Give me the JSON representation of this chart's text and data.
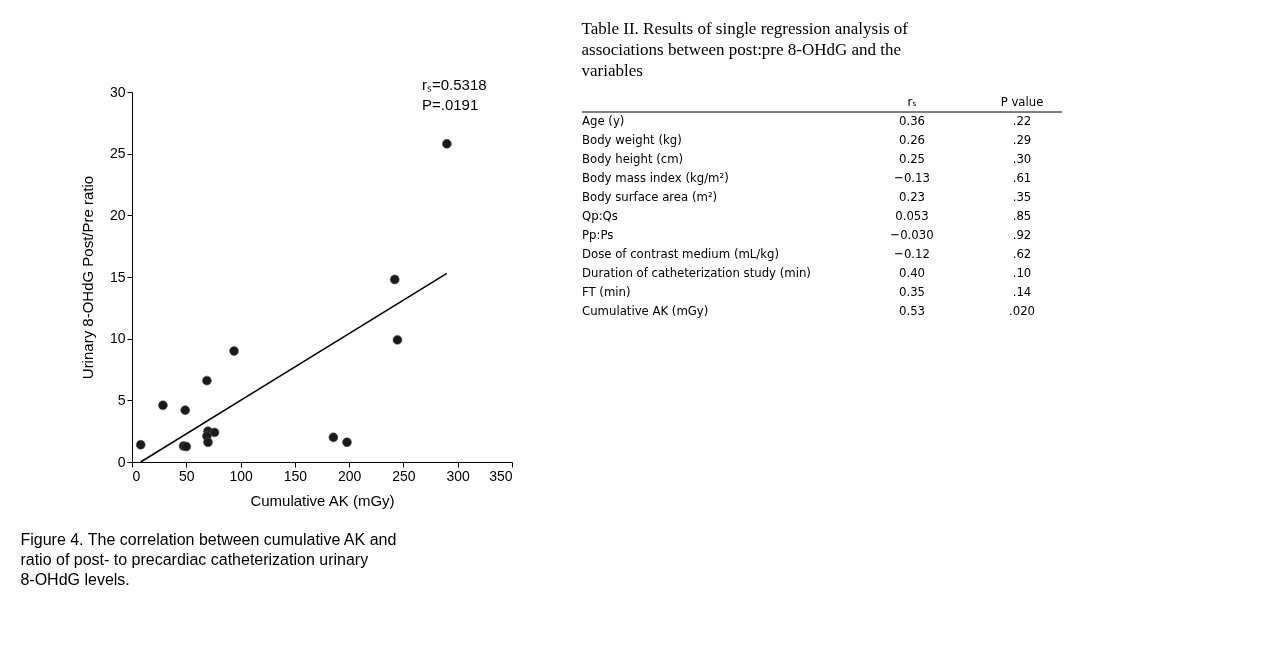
{
  "chart_data": [
    {
      "type": "scatter",
      "xlabel": "Cumulative AK (mGy)",
      "ylabel": "Urinary 8-OHdG Post/Pre ratio",
      "xlim": [
        0,
        350
      ],
      "xticks": [
        0,
        50,
        100,
        150,
        200,
        250,
        300,
        350
      ],
      "ylim": [
        0,
        30
      ],
      "yticks": [
        0,
        5,
        10,
        15,
        20,
        25,
        30
      ],
      "series": [
        {
          "color": "#1a1a1a",
          "marker": "circle",
          "x": [
            8,
            28.5,
            49,
            47.5,
            50,
            69,
            70,
            69,
            70,
            76,
            94,
            185.5,
            198,
            242,
            244.5,
            290
          ],
          "values": [
            1.4,
            4.6,
            4.2,
            1.3,
            1.25,
            6.6,
            2.5,
            2.1,
            1.6,
            2.4,
            9.0,
            2.0,
            1.6,
            14.8,
            9.9,
            25.8
          ]
        },
        {
          "type": "line",
          "marker": "none",
          "color": "#000000",
          "x": [
            8,
            290
          ],
          "values": [
            0,
            15.3
          ]
        }
      ],
      "annotations": [
        "rₛ=0.5318",
        "P=.0191",
        "Figure 4. The correlation between cumulative AK and ratio of post- to precardiac catheterization urinary 8-OHdG levels."
      ]
    },
    {
      "type": "other",
      "title": "Table II. Results of single regression analysis of associations between post:pre 8-OHdG and the variables",
      "annotations": [
        "rₛ",
        "P value",
        "Age (y)",
        "0.36",
        ".22",
        "Body weight (kg)",
        "0.26",
        ".29",
        "Body height (cm)",
        "0.25",
        ".30",
        "Body mass index (kg/m²)",
        "−0.13",
        ".61",
        "Body surface area (m²)",
        "0.23",
        ".35",
        "Qp:Qs",
        "0.053",
        ".85",
        "Pp:Ps",
        "−0.030",
        ".92",
        "Dose of contrast medium (mL/kg)",
        "−0.12",
        ".62",
        "Duration of catheterization study (min)",
        "0.40",
        ".10",
        "FT (min)",
        "0.35",
        ".14",
        "Cumulative AK (mGy)",
        "0.53",
        ".020"
      ]
    }
  ]
}
